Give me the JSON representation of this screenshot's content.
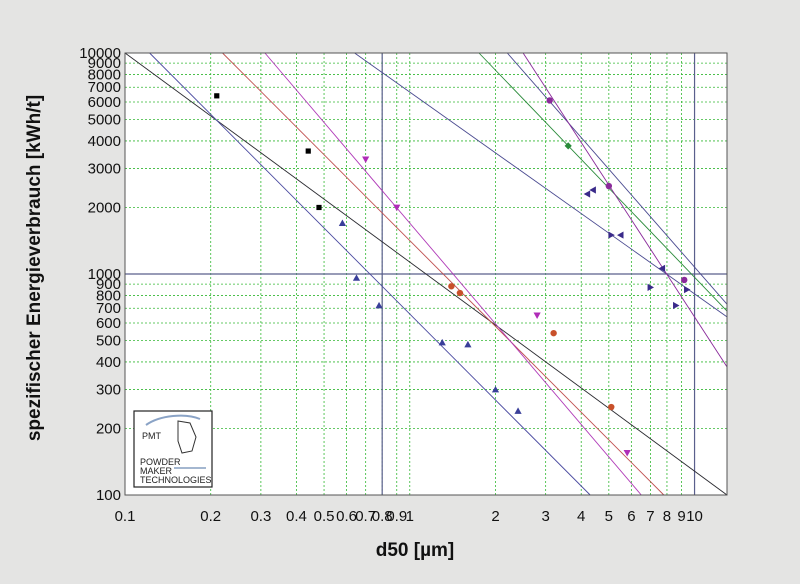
{
  "chart_data": {
    "type": "scatter",
    "title": "",
    "xlabel": "d50 [µm]",
    "ylabel": "spezifischer Energieverbrauch [kWh/t]",
    "x_scale": "log",
    "y_scale": "log",
    "xlim": [
      0.1,
      13
    ],
    "ylim": [
      100,
      10000
    ],
    "grid": true,
    "x_ticks": [
      {
        "v": 0.1,
        "label": "0.1"
      },
      {
        "v": 0.2,
        "label": "0.2"
      },
      {
        "v": 0.3,
        "label": "0.3"
      },
      {
        "v": 0.4,
        "label": "0.4"
      },
      {
        "v": 0.5,
        "label": "0.5"
      },
      {
        "v": 0.6,
        "label": "0.6"
      },
      {
        "v": 0.7,
        "label": "0.7"
      },
      {
        "v": 0.8,
        "label": "0.8"
      },
      {
        "v": 0.9,
        "label": "0.9"
      },
      {
        "v": 1,
        "label": "1"
      },
      {
        "v": 2,
        "label": "2"
      },
      {
        "v": 3,
        "label": "3"
      },
      {
        "v": 4,
        "label": "4"
      },
      {
        "v": 5,
        "label": "5"
      },
      {
        "v": 6,
        "label": "6"
      },
      {
        "v": 7,
        "label": "7"
      },
      {
        "v": 8,
        "label": "8"
      },
      {
        "v": 9,
        "label": "9"
      },
      {
        "v": 10,
        "label": "10"
      }
    ],
    "y_ticks": [
      {
        "v": 100,
        "label": "100"
      },
      {
        "v": 200,
        "label": "200"
      },
      {
        "v": 300,
        "label": "300"
      },
      {
        "v": 400,
        "label": "400"
      },
      {
        "v": 500,
        "label": "500"
      },
      {
        "v": 600,
        "label": "600"
      },
      {
        "v": 700,
        "label": "700"
      },
      {
        "v": 800,
        "label": "800"
      },
      {
        "v": 900,
        "label": "900"
      },
      {
        "v": 1000,
        "label": "1000"
      },
      {
        "v": 2000,
        "label": "2000"
      },
      {
        "v": 3000,
        "label": "3000"
      },
      {
        "v": 4000,
        "label": "4000"
      },
      {
        "v": 5000,
        "label": "5000"
      },
      {
        "v": 6000,
        "label": "6000"
      },
      {
        "v": 7000,
        "label": "7000"
      },
      {
        "v": 8000,
        "label": "8000"
      },
      {
        "v": 9000,
        "label": "9000"
      },
      {
        "v": 10000,
        "label": "10000"
      }
    ],
    "reference_lines": {
      "x": [
        0.8,
        10
      ],
      "y": [
        1000
      ],
      "color": "#5a5f8c"
    },
    "series": [
      {
        "marker": "square",
        "color": "#000000",
        "points": [
          [
            0.21,
            6400
          ],
          [
            0.44,
            3600
          ],
          [
            0.48,
            2000
          ]
        ]
      },
      {
        "marker": "triangle-up",
        "color": "#3a3f9a",
        "points": [
          [
            0.58,
            1700
          ],
          [
            0.65,
            960
          ],
          [
            0.78,
            720
          ],
          [
            1.3,
            490
          ],
          [
            1.6,
            480
          ],
          [
            2.0,
            300
          ],
          [
            2.4,
            240
          ]
        ]
      },
      {
        "marker": "triangle-down",
        "color": "#b02cb8",
        "points": [
          [
            0.7,
            3300
          ],
          [
            0.9,
            2000
          ],
          [
            2.8,
            650
          ],
          [
            5.8,
            155
          ]
        ]
      },
      {
        "marker": "circle",
        "color": "#c8502a",
        "points": [
          [
            1.4,
            880
          ],
          [
            1.5,
            820
          ],
          [
            3.2,
            540
          ],
          [
            5.1,
            250
          ]
        ]
      },
      {
        "marker": "circle",
        "color": "#8a2a9a",
        "points": [
          [
            3.1,
            6100
          ],
          [
            5.0,
            2500
          ],
          [
            9.2,
            940
          ]
        ]
      },
      {
        "marker": "diamond",
        "color": "#2a8a3a",
        "points": [
          [
            3.6,
            3800
          ]
        ]
      },
      {
        "marker": "triangle-left",
        "color": "#3a2a8a",
        "points": [
          [
            4.2,
            2300
          ],
          [
            4.4,
            2400
          ],
          [
            5.5,
            1500
          ],
          [
            7.7,
            1060
          ]
        ]
      },
      {
        "marker": "triangle-right",
        "color": "#3a2a8a",
        "points": [
          [
            5.1,
            1500
          ],
          [
            7.0,
            870
          ],
          [
            8.6,
            720
          ],
          [
            9.4,
            850
          ]
        ]
      }
    ],
    "trend_lines": [
      {
        "color": "#2a2a30",
        "from": [
          0.1,
          10000
        ],
        "to": [
          13,
          100
        ]
      },
      {
        "color": "#4a4aa0",
        "from": [
          0.122,
          10000
        ],
        "to": [
          4.3,
          100
        ]
      },
      {
        "color": "#c05050",
        "from": [
          0.22,
          10000
        ],
        "to": [
          7.8,
          100
        ]
      },
      {
        "color": "#b03ab8",
        "from": [
          0.31,
          10000
        ],
        "to": [
          6.5,
          100
        ]
      },
      {
        "color": "#4a4a90",
        "from": [
          0.64,
          10000
        ],
        "to": [
          13,
          640
        ]
      },
      {
        "color": "#2a8a3a",
        "from": [
          1.75,
          10000
        ],
        "to": [
          13,
          680
        ]
      },
      {
        "color": "#4a4a90",
        "from": [
          2.2,
          10000
        ],
        "to": [
          13,
          730
        ]
      },
      {
        "color": "#8a2a9a",
        "from": [
          2.5,
          10000
        ],
        "to": [
          13,
          380
        ]
      }
    ]
  },
  "logo": {
    "brand": "PMT",
    "line1": "POWDER",
    "line2": "MAKER",
    "line3": "TECHNOLOGIES"
  }
}
